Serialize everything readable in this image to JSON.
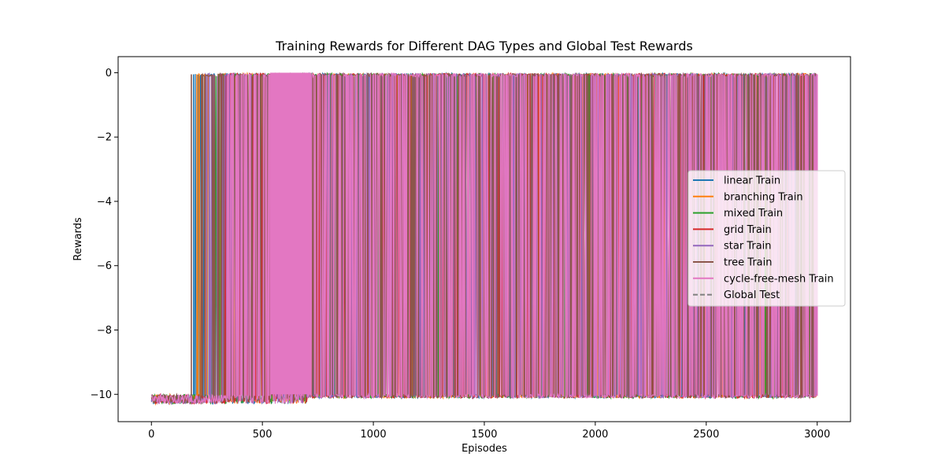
{
  "chart_data": {
    "type": "line",
    "title": "Training Rewards for Different DAG Types and Global Test Rewards",
    "xlabel": "Episodes",
    "ylabel": "Rewards",
    "xlim": [
      -150,
      3150
    ],
    "ylim": [
      -10.85,
      0.5
    ],
    "xticks": [
      0,
      500,
      1000,
      1500,
      2000,
      2500,
      3000
    ],
    "xtick_labels": [
      "0",
      "500",
      "1000",
      "1500",
      "2000",
      "2500",
      "3000"
    ],
    "yticks": [
      0,
      -2,
      -4,
      -6,
      -8,
      -10
    ],
    "ytick_labels": [
      "0",
      "−2",
      "−4",
      "−6",
      "−8",
      "−10"
    ],
    "grid": false,
    "legend_position": "center-right",
    "episodes": 3000,
    "series": [
      {
        "name": "linear Train",
        "color": "#1f77b4",
        "dashed": false,
        "flip_episodes": [
          190,
          960,
          1340,
          1830,
          2320
        ],
        "success_after": 195
      },
      {
        "name": "branching Train",
        "color": "#ff7f0e",
        "dashed": false,
        "flip_episodes": [
          205,
          1480,
          1760,
          1845
        ],
        "success_after": 210
      },
      {
        "name": "mixed Train",
        "color": "#2ca02c",
        "dashed": false,
        "flip_episodes": [
          1020,
          1280,
          1640,
          2110
        ],
        "success_after": 260
      },
      {
        "name": "grid Train",
        "color": "#d62728",
        "dashed": false,
        "flip_episodes": [
          1410,
          1600,
          1725,
          1985,
          2135,
          2355,
          2420,
          2755,
          2865,
          2950
        ],
        "success_after": 300
      },
      {
        "name": "star Train",
        "color": "#9467bd",
        "dashed": false,
        "flip_episodes": [
          260,
          320,
          350,
          1890,
          2060,
          2295,
          2505,
          2980
        ],
        "success_after": 240
      },
      {
        "name": "tree Train",
        "color": "#8c564b",
        "dashed": false,
        "flip_episodes": [
          180,
          230,
          415,
          545,
          725,
          835,
          965,
          1100,
          1240,
          1385,
          1525,
          1655,
          1780,
          1945,
          2075,
          2255,
          2405,
          2535,
          2665,
          2835,
          2935
        ],
        "success_after": 220
      },
      {
        "name": "cycle-free-mesh Train",
        "color": "#e377c2",
        "dashed": false,
        "flip_episodes": [
          345,
          365,
          385,
          405,
          425,
          445,
          465,
          485,
          505,
          530,
          560,
          590,
          620,
          650,
          680,
          710,
          750,
          800,
          880,
          1000,
          1150,
          1300,
          1450,
          1600,
          1750,
          1900,
          2050,
          2200,
          2350,
          2500,
          2650,
          2800,
          2950,
          3000
        ],
        "success_after": 340
      },
      {
        "name": "Global Test",
        "color": "#7f7f7f",
        "dashed": true,
        "flip_episodes": [],
        "success_after": null
      }
    ],
    "fill_band": {
      "series": "cycle-free-mesh Train",
      "from_episode": 535,
      "to_episode": 720
    }
  }
}
